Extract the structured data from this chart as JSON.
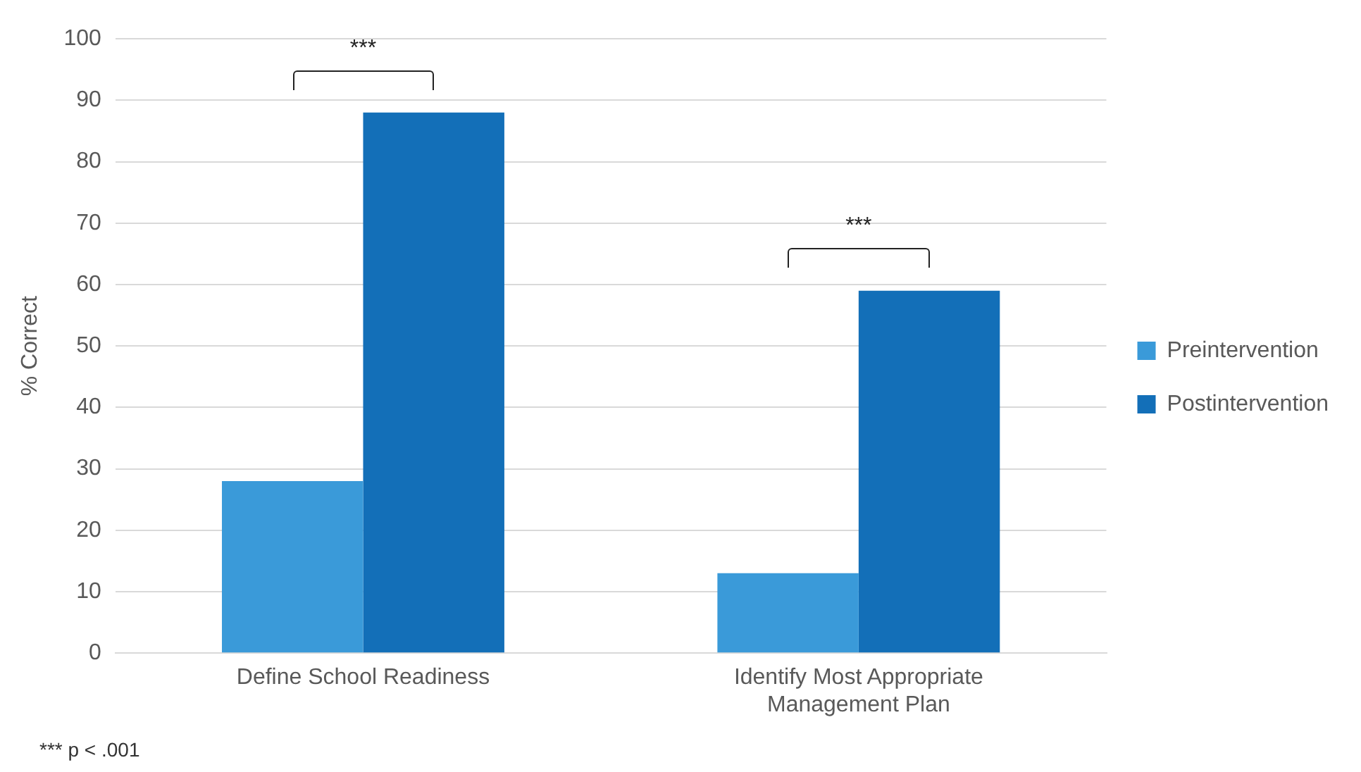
{
  "chart_data": {
    "type": "bar",
    "ylabel": "% Correct",
    "categories": [
      "Define School Readiness",
      "Identify Most Appropriate Management Plan"
    ],
    "series": [
      {
        "name": "Preintervention",
        "color": "#3a9ad9",
        "values": [
          28,
          13
        ]
      },
      {
        "name": "Postintervention",
        "color": "#136fb8",
        "values": [
          88,
          59
        ]
      }
    ],
    "ylim": [
      0,
      100
    ],
    "yticks": [
      0,
      10,
      20,
      30,
      40,
      50,
      60,
      70,
      80,
      90,
      100
    ],
    "grid": "y",
    "legend": "right",
    "annotations": [
      "***",
      "***",
      "*** p < .001"
    ]
  }
}
